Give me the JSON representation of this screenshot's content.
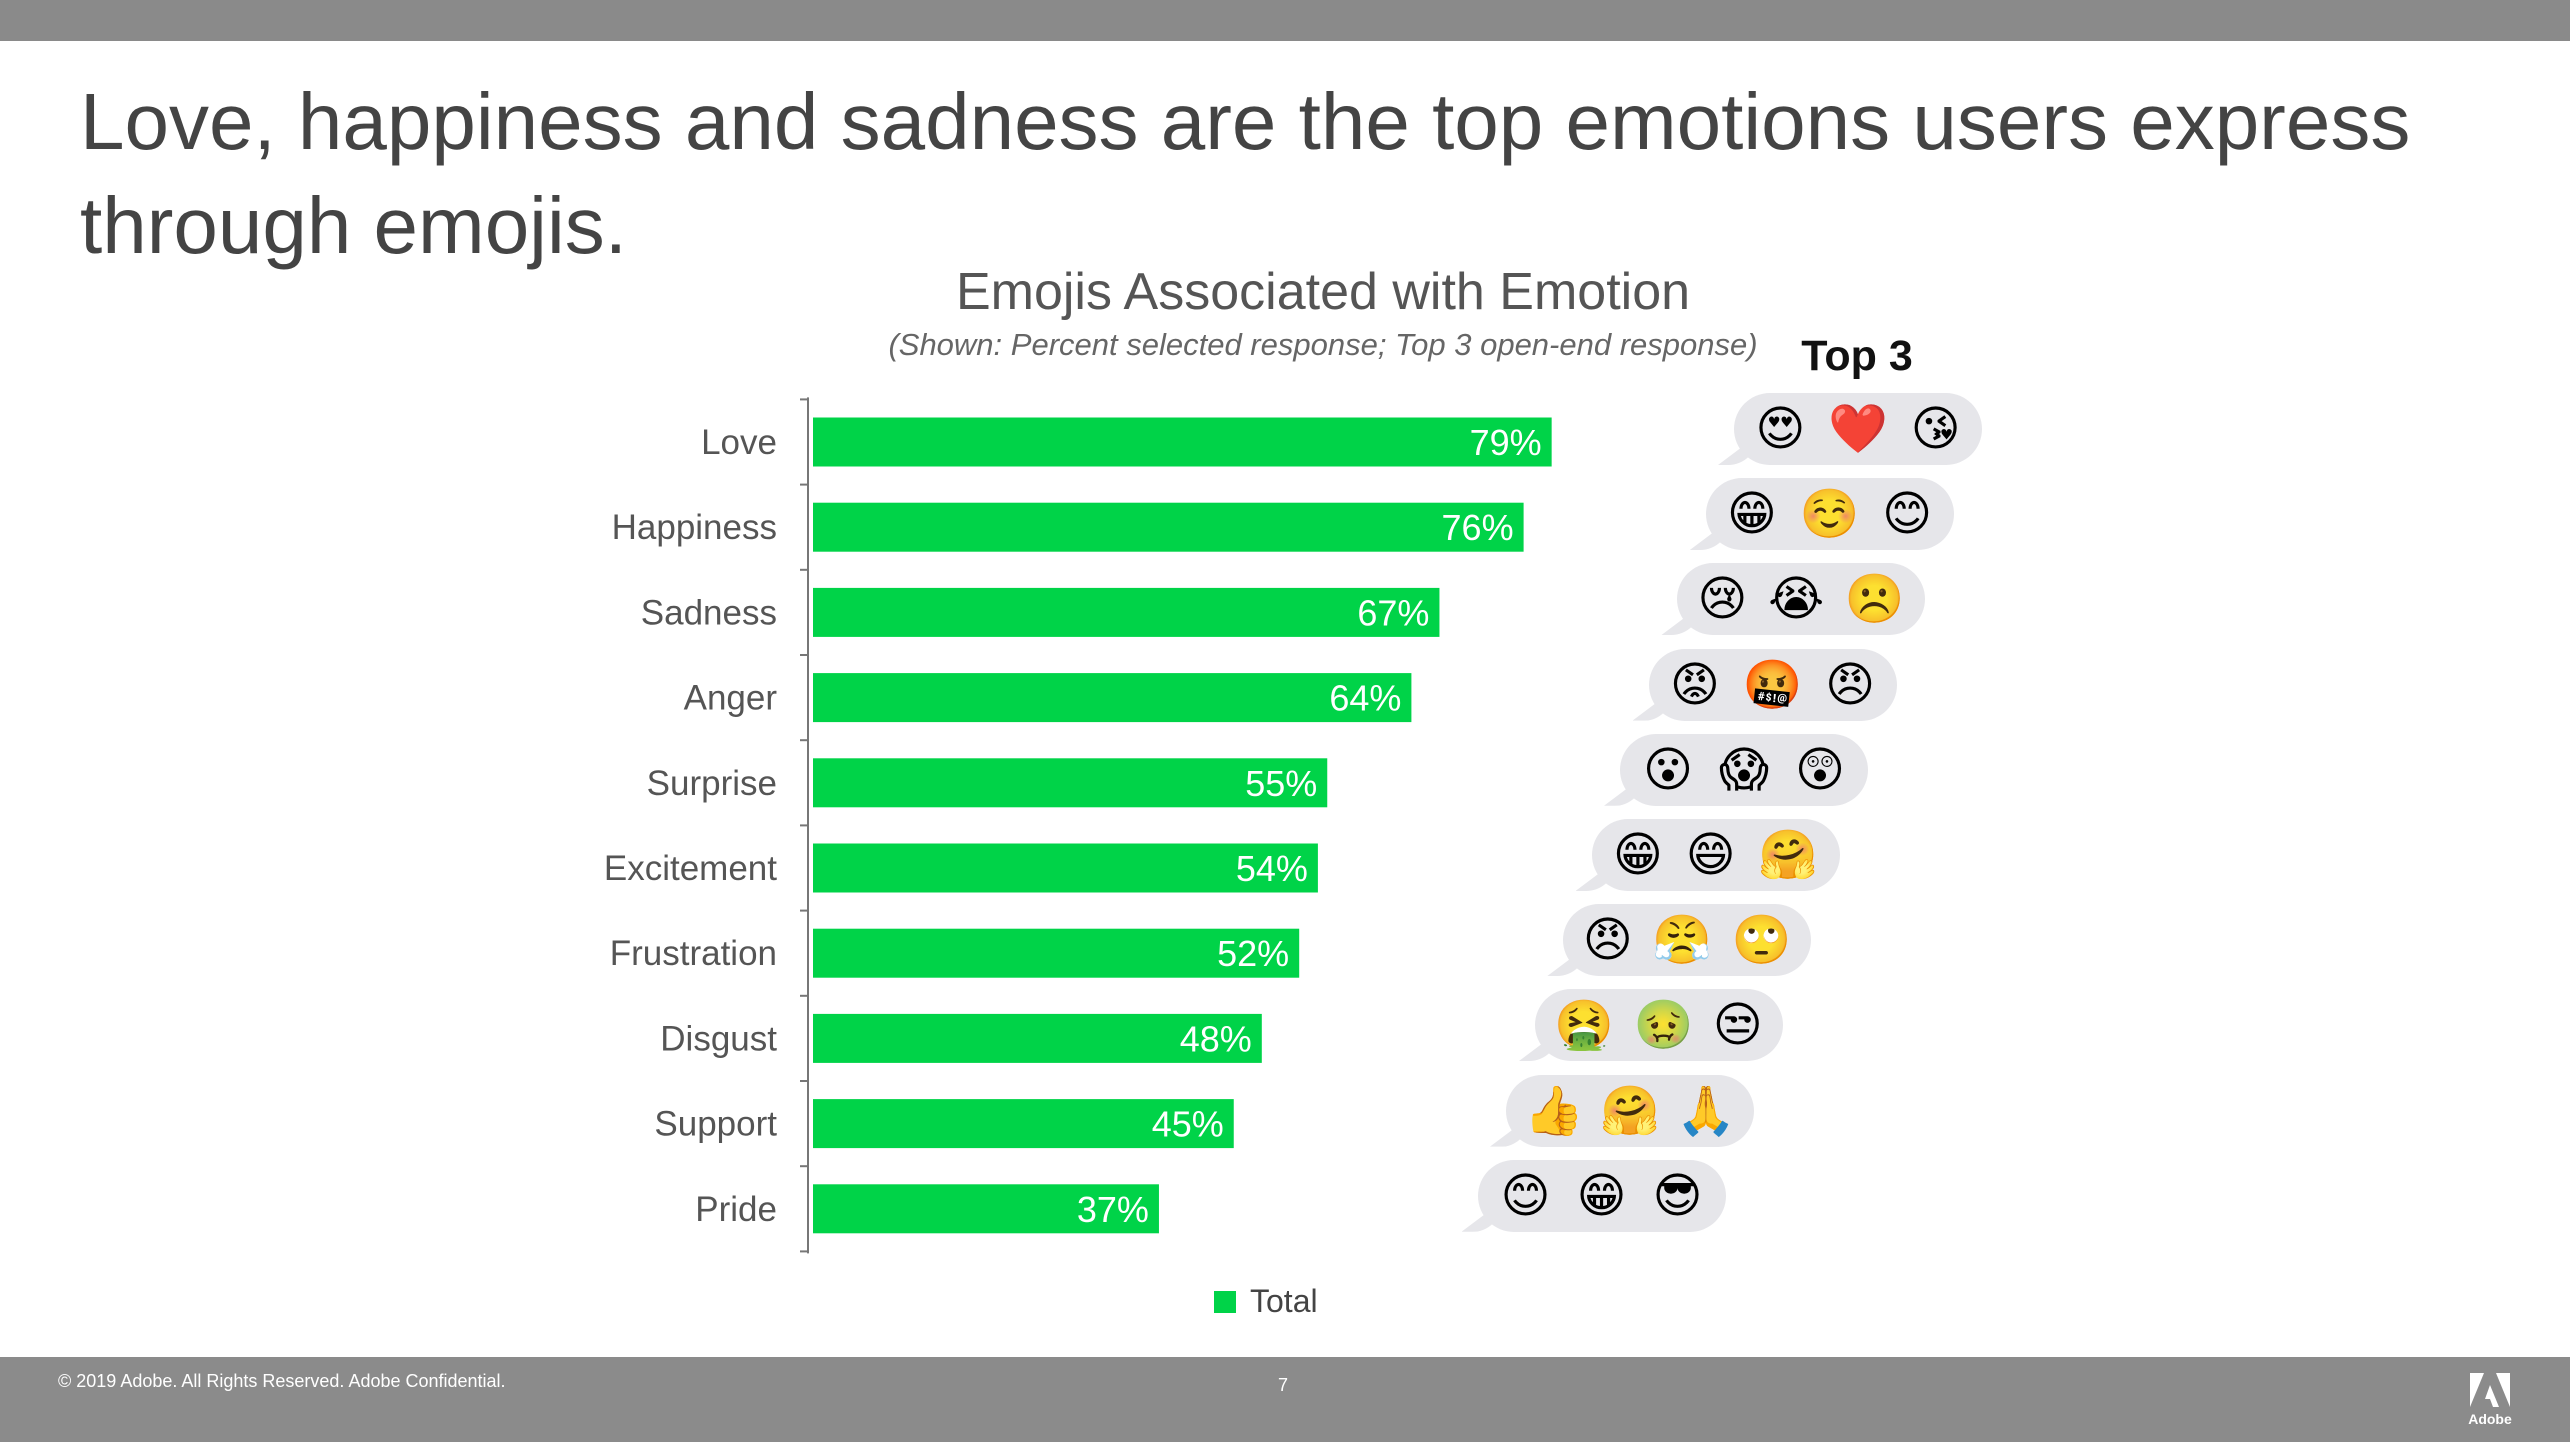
{
  "headline": "Love, happiness and sadness are the top emotions users express through emojis.",
  "chart_data": {
    "type": "bar",
    "orientation": "horizontal",
    "title": "Emojis Associated with Emotion",
    "subtitle": "(Shown: Percent selected response; Top 3 open-end response)",
    "categories": [
      "Love",
      "Happiness",
      "Sadness",
      "Anger",
      "Surprise",
      "Excitement",
      "Frustration",
      "Disgust",
      "Support",
      "Pride"
    ],
    "series": [
      {
        "name": "Total",
        "values": [
          79,
          76,
          67,
          64,
          55,
          54,
          52,
          48,
          45,
          37
        ]
      }
    ],
    "value_labels": [
      "79%",
      "76%",
      "67%",
      "64%",
      "55%",
      "54%",
      "52%",
      "48%",
      "45%",
      "37%"
    ],
    "xlim": [
      0,
      100
    ],
    "unit": "%",
    "grid": false,
    "legend_position": "bottom",
    "bar_color": "#00d348"
  },
  "top3": {
    "label": "Top 3",
    "rows": [
      [
        "😍",
        "❤️",
        "😘"
      ],
      [
        "😁",
        "☺️",
        "😊"
      ],
      [
        "😢",
        "😭",
        "☹️"
      ],
      [
        "😡",
        "🤬",
        "😠"
      ],
      [
        "😮",
        "😱",
        "😲"
      ],
      [
        "😁",
        "😄",
        "🤗"
      ],
      [
        "😠",
        "😤",
        "🙄"
      ],
      [
        "🤮",
        "🤢",
        "😒"
      ],
      [
        "👍",
        "🤗",
        "🙏"
      ],
      [
        "😊",
        "😁",
        "😎"
      ]
    ]
  },
  "footer": {
    "copyright": "© 2019 Adobe.  All Rights Reserved.  Adobe Confidential.",
    "page_number": "7",
    "logo_text": "Adobe"
  },
  "colors": {
    "bar": "#00d348",
    "bars_bg": "#8a8a8a",
    "bubble": "#e6e6ea"
  }
}
